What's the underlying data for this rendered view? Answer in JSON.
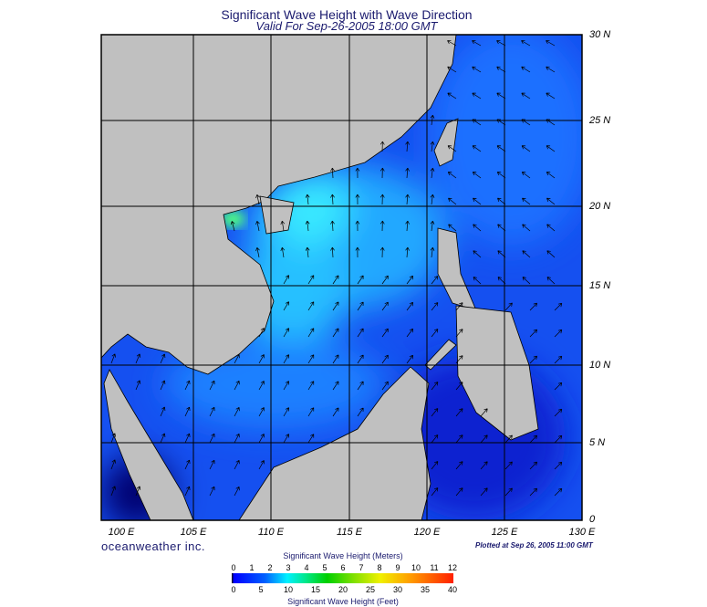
{
  "title": "Significant Wave Height with Wave Direction",
  "subtitle": "Valid For Sep-26-2005 18:00 GMT",
  "map": {
    "latitude_labels": [
      "30 N",
      "25 N",
      "20 N",
      "15 N",
      "10 N",
      "5 N",
      "0"
    ],
    "longitude_labels": [
      "100 E",
      "105 E",
      "110 E",
      "115 E",
      "120 E",
      "125 E",
      "130 E"
    ],
    "colors": {
      "land": "#c0c0c0",
      "ocean_low": "#0a2cd8",
      "ocean_mid": "#1f7cff",
      "ocean_high": "#30e0ff",
      "peak": "#40ff80",
      "grid": "#000000"
    }
  },
  "brand": "oceanweather inc.",
  "plotted": "Plotted at Sep 26, 2005 11:00 GMT",
  "colorbar": {
    "title_top": "Significant Wave Height (Meters)",
    "title_bottom": "Significant Wave Height (Feet)",
    "meters_ticks": [
      "0",
      "1",
      "2",
      "3",
      "4",
      "5",
      "6",
      "7",
      "8",
      "9",
      "10",
      "11",
      "12"
    ],
    "feet_ticks": [
      "0",
      "5",
      "10",
      "15",
      "20",
      "25",
      "30",
      "35",
      "40"
    ]
  }
}
